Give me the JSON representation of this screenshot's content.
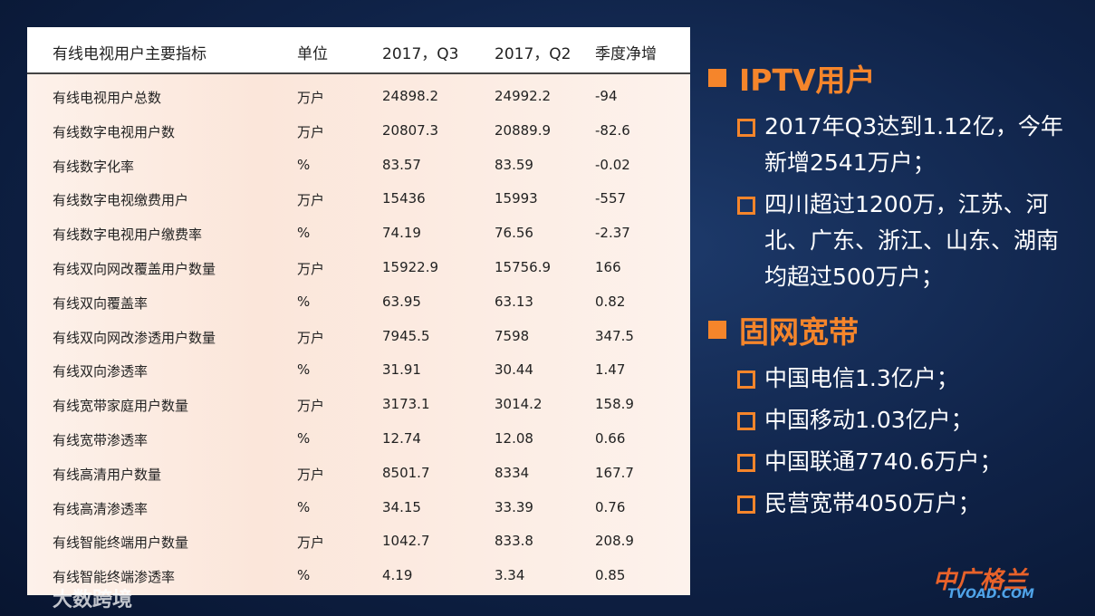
{
  "table": {
    "headers": [
      "有线电视用户主要指标",
      "单位",
      "2017，Q3",
      "2017，Q2",
      "季度净增"
    ],
    "rows": [
      [
        "有线电视用户总数",
        "万户",
        "24898.2",
        "24992.2",
        "-94"
      ],
      [
        "有线数字电视用户数",
        "万户",
        "20807.3",
        "20889.9",
        "-82.6"
      ],
      [
        "有线数字化率",
        "%",
        "83.57",
        "83.59",
        "-0.02"
      ],
      [
        "有线数字电视缴费用户",
        "万户",
        "15436",
        "15993",
        "-557"
      ],
      [
        "有线数字电视用户缴费率",
        "%",
        "74.19",
        "76.56",
        "-2.37"
      ],
      [
        "有线双向网改覆盖用户数量",
        "万户",
        "15922.9",
        "15756.9",
        "166"
      ],
      [
        "有线双向覆盖率",
        "%",
        "63.95",
        "63.13",
        "0.82"
      ],
      [
        "有线双向网改渗透用户数量",
        "万户",
        "7945.5",
        "7598",
        "347.5"
      ],
      [
        "有线双向渗透率",
        "%",
        "31.91",
        "30.44",
        "1.47"
      ],
      [
        "有线宽带家庭用户数量",
        "万户",
        "3173.1",
        "3014.2",
        "158.9"
      ],
      [
        "有线宽带渗透率",
        "%",
        "12.74",
        "12.08",
        "0.66"
      ],
      [
        "有线高清用户数量",
        "万户",
        "8501.7",
        "8334",
        "167.7"
      ],
      [
        "有线高清渗透率",
        "%",
        "34.15",
        "33.39",
        "0.76"
      ],
      [
        "有线智能终端用户数量",
        "万户",
        "1042.7",
        "833.8",
        "208.9"
      ],
      [
        "有线智能终端渗透率",
        "%",
        "4.19",
        "3.34",
        "0.85"
      ]
    ]
  },
  "sections": [
    {
      "title": "IPTV用户",
      "items": [
        "2017年Q3达到1.12亿，今年新增2541万户；",
        "四川超过1200万，江苏、河北、广东、浙江、山东、湖南均超过500万户；"
      ]
    },
    {
      "title": "固网宽带",
      "items": [
        "中国电信1.3亿户；",
        "中国移动1.03亿户；",
        "中国联通7740.6万户；",
        "民营宽带4050万户；"
      ]
    }
  ],
  "watermarks": [
    "大数跨境",
    "中广格兰",
    "TVOAD.COM"
  ]
}
